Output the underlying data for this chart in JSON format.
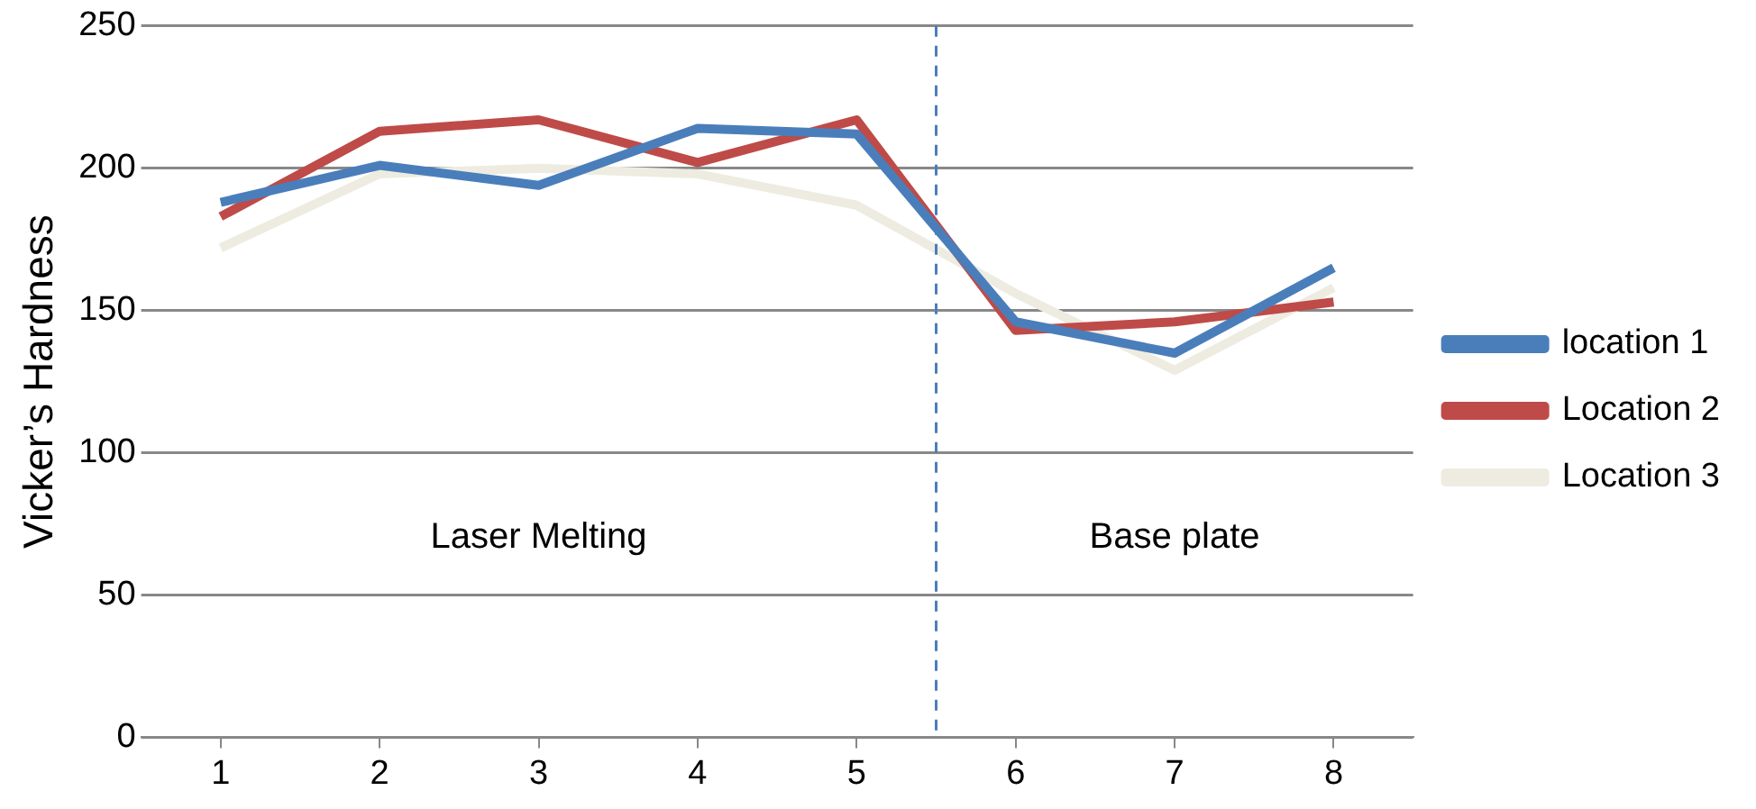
{
  "chart_data": {
    "type": "line",
    "ylabel": "Vicker’s Hardness",
    "x": [
      1,
      2,
      3,
      4,
      5,
      6,
      7,
      8
    ],
    "xlim": [
      0.5,
      8.5
    ],
    "xticks": [
      1,
      2,
      3,
      4,
      5,
      6,
      7,
      8
    ],
    "ylim": [
      0,
      250
    ],
    "yticks": [
      0,
      50,
      100,
      150,
      200,
      250
    ],
    "grid": "y",
    "legend": "right",
    "marker": "none",
    "line_style": "solid",
    "series": [
      {
        "name": "location 1",
        "color": "#4a7ebb",
        "values": [
          188,
          201,
          194,
          214,
          212,
          146,
          135,
          165
        ]
      },
      {
        "name": "Location 2",
        "color": "#be4b48",
        "values": [
          183,
          213,
          217,
          202,
          217,
          143,
          146,
          153
        ]
      },
      {
        "name": "Location 3",
        "color": "#eeece1",
        "values": [
          172,
          198,
          200,
          198,
          187,
          156,
          129,
          158
        ]
      }
    ],
    "ref_lines": [
      {
        "axis": "x",
        "value": 5.5,
        "color": "#4a7ebb",
        "line_style": "dashed"
      }
    ],
    "annotations": [
      "Laser Melting",
      "Base plate"
    ]
  }
}
